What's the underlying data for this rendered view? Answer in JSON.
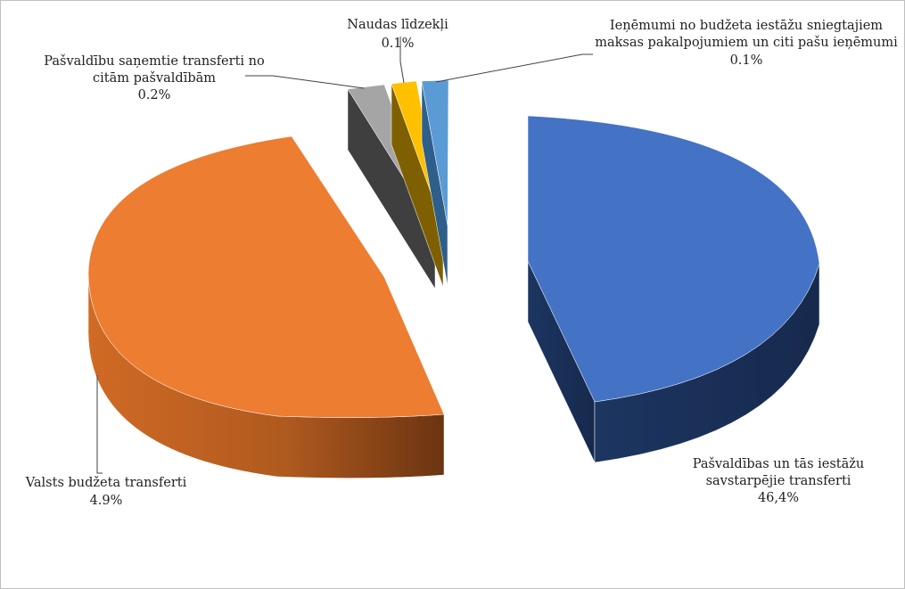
{
  "chart_data": {
    "type": "pie",
    "style": "3d-exploded",
    "title": "",
    "legend": "none",
    "slices": [
      {
        "label_lines": [
          "Pašvaldības un tās iestāžu",
          "savstarpējie transferti"
        ],
        "value_label": "46,4%",
        "value": 46.4,
        "color": "#4472c4",
        "side_color": "#1f3864"
      },
      {
        "label_lines": [
          "Valsts budžeta transferti"
        ],
        "value_label": "4.9%",
        "value": 4.9,
        "color": "#ed7d31",
        "side_color": "#a5541e"
      },
      {
        "label_lines": [
          "Pašvaldību saņemtie transferti no",
          "citām pašvaldībām"
        ],
        "value_label": "0.2%",
        "value": 0.2,
        "color": "#a5a5a5",
        "side_color": "#3f3f3f"
      },
      {
        "label_lines": [
          "Naudas līdzekļi"
        ],
        "value_label": "0.1%",
        "value": 0.1,
        "color": "#ffc000",
        "side_color": "#7f6000"
      },
      {
        "label_lines": [
          "Ieņēmumi no budžeta iestāžu sniegtajiem",
          "maksas pakalpojumiem un citi pašu ieņēmumi"
        ],
        "value_label": "0.1%",
        "value": 0.1,
        "color": "#5b9bd5",
        "side_color": "#2e5f8a"
      }
    ]
  }
}
